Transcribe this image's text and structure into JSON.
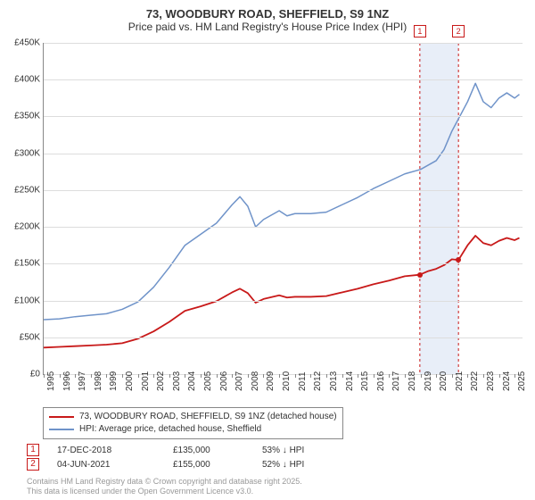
{
  "title": {
    "line1": "73, WOODBURY ROAD, SHEFFIELD, S9 1NZ",
    "line2": "Price paid vs. HM Land Registry's House Price Index (HPI)",
    "fontsize1": 13,
    "fontsize2": 12
  },
  "chart": {
    "type": "line",
    "background_color": "#ffffff",
    "grid_color": "#dddddd",
    "axis_color": "#888888",
    "x": {
      "min": 1995,
      "max": 2025.5,
      "ticks": [
        1995,
        1996,
        1997,
        1998,
        1999,
        2000,
        2001,
        2002,
        2003,
        2004,
        2005,
        2006,
        2007,
        2008,
        2009,
        2010,
        2011,
        2012,
        2013,
        2014,
        2015,
        2016,
        2017,
        2018,
        2019,
        2020,
        2021,
        2022,
        2023,
        2024,
        2025
      ],
      "label_fontsize": 10
    },
    "y": {
      "min": 0,
      "max": 450000,
      "ticks": [
        0,
        50000,
        100000,
        150000,
        200000,
        250000,
        300000,
        350000,
        400000,
        450000
      ],
      "tick_labels": [
        "£0",
        "£50K",
        "£100K",
        "£150K",
        "£200K",
        "£250K",
        "£300K",
        "£350K",
        "£400K",
        "£450K"
      ],
      "label_fontsize": 10
    },
    "shade_band": {
      "from_x": 2018.96,
      "to_x": 2021.42,
      "color": "#e8eef8"
    },
    "series": [
      {
        "name": "hpi",
        "label": "HPI: Average price, detached house, Sheffield",
        "color": "#6f93c9",
        "width": 1.5,
        "points": [
          [
            1995,
            74000
          ],
          [
            1996,
            75000
          ],
          [
            1997,
            78000
          ],
          [
            1998,
            80000
          ],
          [
            1999,
            82000
          ],
          [
            2000,
            88000
          ],
          [
            2001,
            98000
          ],
          [
            2002,
            118000
          ],
          [
            2003,
            145000
          ],
          [
            2004,
            175000
          ],
          [
            2005,
            190000
          ],
          [
            2006,
            205000
          ],
          [
            2007,
            230000
          ],
          [
            2007.5,
            241000
          ],
          [
            2008,
            228000
          ],
          [
            2008.5,
            200000
          ],
          [
            2009,
            210000
          ],
          [
            2010,
            222000
          ],
          [
            2010.5,
            215000
          ],
          [
            2011,
            218000
          ],
          [
            2012,
            218000
          ],
          [
            2013,
            220000
          ],
          [
            2014,
            230000
          ],
          [
            2015,
            240000
          ],
          [
            2016,
            252000
          ],
          [
            2017,
            262000
          ],
          [
            2018,
            272000
          ],
          [
            2019,
            278000
          ],
          [
            2020,
            290000
          ],
          [
            2020.5,
            305000
          ],
          [
            2021,
            330000
          ],
          [
            2021.5,
            350000
          ],
          [
            2022,
            370000
          ],
          [
            2022.5,
            395000
          ],
          [
            2023,
            370000
          ],
          [
            2023.5,
            362000
          ],
          [
            2024,
            375000
          ],
          [
            2024.5,
            382000
          ],
          [
            2025,
            375000
          ],
          [
            2025.3,
            380000
          ]
        ]
      },
      {
        "name": "price_paid",
        "label": "73, WOODBURY ROAD, SHEFFIELD, S9 1NZ (detached house)",
        "color": "#c81919",
        "width": 1.8,
        "points": [
          [
            1995,
            36000
          ],
          [
            1996,
            37000
          ],
          [
            1997,
            38000
          ],
          [
            1998,
            39000
          ],
          [
            1999,
            40000
          ],
          [
            2000,
            42000
          ],
          [
            2001,
            48000
          ],
          [
            2002,
            58000
          ],
          [
            2003,
            71000
          ],
          [
            2004,
            86000
          ],
          [
            2005,
            92000
          ],
          [
            2006,
            99000
          ],
          [
            2007,
            111000
          ],
          [
            2007.5,
            116000
          ],
          [
            2008,
            110000
          ],
          [
            2008.5,
            97000
          ],
          [
            2009,
            102000
          ],
          [
            2010,
            107000
          ],
          [
            2010.5,
            104000
          ],
          [
            2011,
            105000
          ],
          [
            2012,
            105000
          ],
          [
            2013,
            106000
          ],
          [
            2014,
            111000
          ],
          [
            2015,
            116000
          ],
          [
            2016,
            122000
          ],
          [
            2017,
            127000
          ],
          [
            2018,
            133000
          ],
          [
            2018.96,
            135000
          ],
          [
            2019.5,
            140000
          ],
          [
            2020,
            143000
          ],
          [
            2020.5,
            148000
          ],
          [
            2021,
            156000
          ],
          [
            2021.42,
            155000
          ],
          [
            2022,
            175000
          ],
          [
            2022.5,
            188000
          ],
          [
            2023,
            178000
          ],
          [
            2023.5,
            175000
          ],
          [
            2024,
            181000
          ],
          [
            2024.5,
            185000
          ],
          [
            2025,
            182000
          ],
          [
            2025.3,
            185000
          ]
        ]
      }
    ],
    "markers": [
      {
        "n": "1",
        "x": 2018.96,
        "y": 135000,
        "color": "#c81919"
      },
      {
        "n": "2",
        "x": 2021.42,
        "y": 155000,
        "color": "#c81919"
      }
    ],
    "marker_box_color": "#c81919"
  },
  "legend": {
    "items": [
      {
        "color": "#c81919",
        "label": "73, WOODBURY ROAD, SHEFFIELD, S9 1NZ (detached house)"
      },
      {
        "color": "#6f93c9",
        "label": "HPI: Average price, detached house, Sheffield"
      }
    ]
  },
  "sales": [
    {
      "n": "1",
      "date": "17-DEC-2018",
      "price": "£135,000",
      "diff": "53% ↓ HPI",
      "box_color": "#c81919"
    },
    {
      "n": "2",
      "date": "04-JUN-2021",
      "price": "£155,000",
      "diff": "52% ↓ HPI",
      "box_color": "#c81919"
    }
  ],
  "footer": {
    "line1": "Contains HM Land Registry data © Crown copyright and database right 2025.",
    "line2": "This data is licensed under the Open Government Licence v3.0."
  }
}
